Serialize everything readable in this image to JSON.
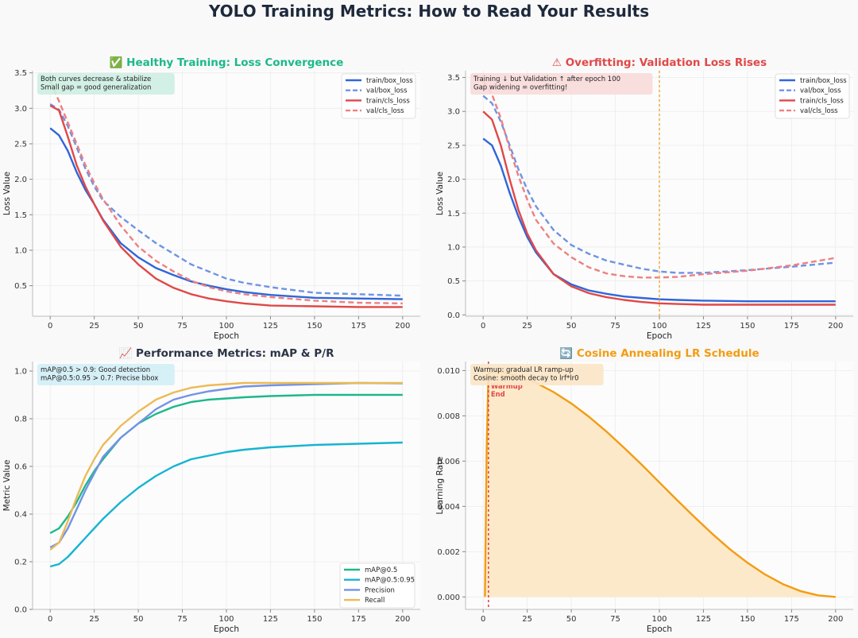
{
  "page": {
    "title": "YOLO Training Metrics: How to Read Your Results"
  },
  "colors": {
    "blue": "#2f66d9",
    "blue_light": "#6f93e6",
    "red": "#e04848",
    "red_light": "#ee8080",
    "green": "#1db88a",
    "cyan": "#16b4d2",
    "precision": "#7292e6",
    "recall": "#ecbb56",
    "orange": "#f39c12",
    "orange_fill": "#fce9c9",
    "title_dark": "#2b3446"
  },
  "chart_data": [
    {
      "id": "healthy",
      "type": "line",
      "title": "✅ Healthy Training: Loss Convergence",
      "title_color": "#1db88a",
      "xlabel": "Epoch",
      "ylabel": "Loss Value",
      "xlim": [
        -10,
        210
      ],
      "ylim": [
        0.07,
        3.53
      ],
      "xticks": [
        0,
        25,
        50,
        75,
        100,
        125,
        150,
        175,
        200
      ],
      "yticks": [
        0.5,
        1.0,
        1.5,
        2.0,
        2.5,
        3.0,
        3.5
      ],
      "ytick_decimals": 1,
      "grid": true,
      "legend": "top-right",
      "annotation": {
        "lines": [
          "Both curves decrease & stabilize",
          "Small gap = good generalization"
        ],
        "bg": "#cdeee2"
      },
      "series": [
        {
          "name": "train/box_loss",
          "color": "#2f66d9",
          "dash": false,
          "x": [
            0,
            5,
            10,
            15,
            20,
            25,
            30,
            40,
            50,
            60,
            70,
            80,
            90,
            100,
            110,
            125,
            150,
            175,
            200
          ],
          "y": [
            2.72,
            2.62,
            2.4,
            2.1,
            1.85,
            1.65,
            1.43,
            1.1,
            0.9,
            0.75,
            0.65,
            0.56,
            0.5,
            0.45,
            0.41,
            0.37,
            0.33,
            0.32,
            0.31
          ]
        },
        {
          "name": "val/box_loss",
          "color": "#6f93e6",
          "dash": true,
          "x": [
            0,
            5,
            10,
            15,
            20,
            25,
            30,
            40,
            50,
            60,
            70,
            80,
            90,
            100,
            110,
            125,
            150,
            175,
            200
          ],
          "y": [
            3.06,
            2.98,
            2.75,
            2.45,
            2.15,
            1.9,
            1.7,
            1.47,
            1.28,
            1.1,
            0.95,
            0.8,
            0.7,
            0.6,
            0.54,
            0.48,
            0.4,
            0.38,
            0.36
          ]
        },
        {
          "name": "train/cls_loss",
          "color": "#e04848",
          "dash": false,
          "x": [
            0,
            5,
            10,
            15,
            20,
            25,
            30,
            40,
            50,
            60,
            70,
            80,
            90,
            100,
            110,
            125,
            150,
            175,
            200
          ],
          "y": [
            3.04,
            2.97,
            2.6,
            2.2,
            1.9,
            1.65,
            1.42,
            1.05,
            0.8,
            0.6,
            0.47,
            0.38,
            0.32,
            0.28,
            0.25,
            0.22,
            0.21,
            0.2,
            0.2
          ]
        },
        {
          "name": "val/cls_loss",
          "color": "#ee8080",
          "dash": true,
          "x": [
            0,
            5,
            10,
            15,
            20,
            25,
            30,
            40,
            50,
            60,
            70,
            80,
            90,
            100,
            110,
            125,
            150,
            175,
            200
          ],
          "y": [
            3.38,
            3.1,
            2.8,
            2.5,
            2.2,
            1.95,
            1.72,
            1.35,
            1.05,
            0.85,
            0.7,
            0.57,
            0.48,
            0.42,
            0.38,
            0.34,
            0.29,
            0.26,
            0.25
          ]
        }
      ]
    },
    {
      "id": "overfit",
      "type": "line",
      "title": "⚠ Overfitting: Validation Loss Rises",
      "title_color": "#e04848",
      "xlabel": "Epoch",
      "ylabel": "Loss Value",
      "xlim": [
        -10,
        210
      ],
      "ylim": [
        -0.02,
        3.6
      ],
      "xticks": [
        0,
        25,
        50,
        75,
        100,
        125,
        150,
        175,
        200
      ],
      "yticks": [
        0.0,
        0.5,
        1.0,
        1.5,
        2.0,
        2.5,
        3.0,
        3.5
      ],
      "ytick_decimals": 1,
      "grid": true,
      "legend": "top-right",
      "vline": {
        "x": 100,
        "color": "#f3b04a"
      },
      "annotation": {
        "lines": [
          "Training ↓ but Validation ↑ after epoch 100",
          "Gap widening = overfitting!"
        ],
        "bg": "#f8dada"
      },
      "series": [
        {
          "name": "train/box_loss",
          "color": "#2f66d9",
          "dash": false,
          "x": [
            0,
            5,
            10,
            15,
            20,
            25,
            30,
            40,
            50,
            60,
            70,
            80,
            90,
            100,
            110,
            125,
            150,
            175,
            200
          ],
          "y": [
            2.6,
            2.5,
            2.2,
            1.8,
            1.45,
            1.15,
            0.92,
            0.6,
            0.45,
            0.36,
            0.31,
            0.27,
            0.25,
            0.23,
            0.22,
            0.21,
            0.2,
            0.2,
            0.2
          ]
        },
        {
          "name": "val/box_loss",
          "color": "#6f93e6",
          "dash": true,
          "x": [
            0,
            5,
            10,
            15,
            20,
            25,
            30,
            40,
            50,
            60,
            70,
            80,
            90,
            100,
            110,
            125,
            150,
            175,
            200
          ],
          "y": [
            3.23,
            3.12,
            2.85,
            2.5,
            2.15,
            1.85,
            1.6,
            1.25,
            1.03,
            0.9,
            0.8,
            0.74,
            0.68,
            0.64,
            0.62,
            0.62,
            0.66,
            0.71,
            0.77
          ]
        },
        {
          "name": "train/cls_loss",
          "color": "#e04848",
          "dash": false,
          "x": [
            0,
            5,
            10,
            15,
            20,
            25,
            30,
            40,
            50,
            60,
            70,
            80,
            90,
            100,
            110,
            125,
            150,
            175,
            200
          ],
          "y": [
            3.0,
            2.88,
            2.5,
            2.0,
            1.55,
            1.2,
            0.95,
            0.6,
            0.42,
            0.32,
            0.26,
            0.22,
            0.19,
            0.17,
            0.16,
            0.15,
            0.15,
            0.15,
            0.15
          ]
        },
        {
          "name": "val/cls_loss",
          "color": "#ee8080",
          "dash": true,
          "x": [
            0,
            5,
            10,
            15,
            20,
            25,
            30,
            40,
            50,
            60,
            70,
            80,
            90,
            100,
            110,
            125,
            150,
            175,
            200
          ],
          "y": [
            3.45,
            3.25,
            2.9,
            2.45,
            2.05,
            1.7,
            1.4,
            1.05,
            0.85,
            0.7,
            0.61,
            0.57,
            0.55,
            0.55,
            0.56,
            0.6,
            0.65,
            0.73,
            0.84
          ]
        }
      ]
    },
    {
      "id": "perf",
      "type": "line",
      "title": "📈 Performance Metrics: mAP & P/R",
      "title_color": "#2b3446",
      "xlabel": "Epoch",
      "ylabel": "Metric Value",
      "xlim": [
        -10,
        210
      ],
      "ylim": [
        0.0,
        1.04
      ],
      "xticks": [
        0,
        25,
        50,
        75,
        100,
        125,
        150,
        175,
        200
      ],
      "yticks": [
        0.0,
        0.2,
        0.4,
        0.6,
        0.8,
        1.0
      ],
      "ytick_decimals": 1,
      "grid": true,
      "legend": "bottom-right",
      "annotation": {
        "lines": [
          "mAP@0.5 > 0.9: Good detection",
          "mAP@0.5:0.95 > 0.7: Precise bbox"
        ],
        "bg": "#d2eef6"
      },
      "series": [
        {
          "name": "mAP@0.5",
          "color": "#1db88a",
          "dash": false,
          "x": [
            0,
            5,
            10,
            15,
            20,
            25,
            30,
            40,
            50,
            60,
            70,
            80,
            90,
            100,
            110,
            125,
            150,
            175,
            200
          ],
          "y": [
            0.32,
            0.34,
            0.39,
            0.45,
            0.52,
            0.58,
            0.63,
            0.72,
            0.78,
            0.82,
            0.85,
            0.87,
            0.88,
            0.885,
            0.89,
            0.895,
            0.9,
            0.9,
            0.9
          ]
        },
        {
          "name": "mAP@0.5:0.95",
          "color": "#16b4d2",
          "dash": false,
          "x": [
            0,
            5,
            10,
            15,
            20,
            25,
            30,
            40,
            50,
            60,
            70,
            80,
            90,
            100,
            110,
            125,
            150,
            175,
            200
          ],
          "y": [
            0.18,
            0.19,
            0.22,
            0.26,
            0.3,
            0.34,
            0.38,
            0.45,
            0.51,
            0.56,
            0.6,
            0.63,
            0.645,
            0.66,
            0.67,
            0.68,
            0.69,
            0.695,
            0.7
          ]
        },
        {
          "name": "Precision",
          "color": "#7292e6",
          "dash": false,
          "x": [
            0,
            5,
            10,
            15,
            20,
            25,
            30,
            40,
            50,
            60,
            70,
            80,
            90,
            100,
            110,
            125,
            150,
            175,
            200
          ],
          "y": [
            0.26,
            0.28,
            0.34,
            0.42,
            0.5,
            0.57,
            0.64,
            0.72,
            0.78,
            0.84,
            0.88,
            0.9,
            0.915,
            0.925,
            0.935,
            0.94,
            0.945,
            0.95,
            0.948
          ]
        },
        {
          "name": "Recall",
          "color": "#ecbb56",
          "dash": false,
          "x": [
            0,
            5,
            10,
            15,
            20,
            25,
            30,
            40,
            50,
            60,
            70,
            80,
            90,
            100,
            110,
            125,
            150,
            175,
            200
          ],
          "y": [
            0.25,
            0.28,
            0.37,
            0.47,
            0.56,
            0.63,
            0.69,
            0.77,
            0.83,
            0.88,
            0.91,
            0.93,
            0.94,
            0.945,
            0.95,
            0.95,
            0.95,
            0.95,
            0.95
          ]
        }
      ]
    },
    {
      "id": "lr",
      "type": "area",
      "title": "🔄 Cosine Annealing LR Schedule",
      "title_color": "#f39c12",
      "xlabel": "Epoch",
      "ylabel": "Learning Rate",
      "xlim": [
        -10,
        210
      ],
      "ylim": [
        -0.00055,
        0.0104
      ],
      "xticks": [
        0,
        25,
        50,
        75,
        100,
        125,
        150,
        175,
        200
      ],
      "yticks": [
        0.0,
        0.002,
        0.004,
        0.006,
        0.008,
        0.01
      ],
      "ytick_decimals": 3,
      "grid": true,
      "legend": "none",
      "vline": {
        "x": 3,
        "color": "#e04848",
        "label": [
          "Warmup",
          "End"
        ]
      },
      "annotation": {
        "lines": [
          "Warmup: gradual LR ramp-up",
          "Cosine: smooth decay to lrf*lr0"
        ],
        "bg": "#fbe6c7"
      },
      "series": [
        {
          "name": "",
          "color": "#f39c12",
          "dash": false,
          "fill": "#fce9c9",
          "x": [
            1,
            2,
            3,
            10,
            20,
            30,
            40,
            50,
            60,
            70,
            80,
            90,
            100,
            110,
            120,
            130,
            140,
            150,
            160,
            170,
            180,
            190,
            200
          ],
          "y": [
            0.0,
            0.0065,
            0.0099,
            0.00994,
            0.00976,
            0.00946,
            0.00905,
            0.00855,
            0.00796,
            0.0073,
            0.00659,
            0.00584,
            0.00506,
            0.00428,
            0.00352,
            0.00279,
            0.00211,
            0.00151,
            0.00099,
            0.00057,
            0.00026,
            7e-05,
            0.0
          ]
        }
      ]
    }
  ]
}
